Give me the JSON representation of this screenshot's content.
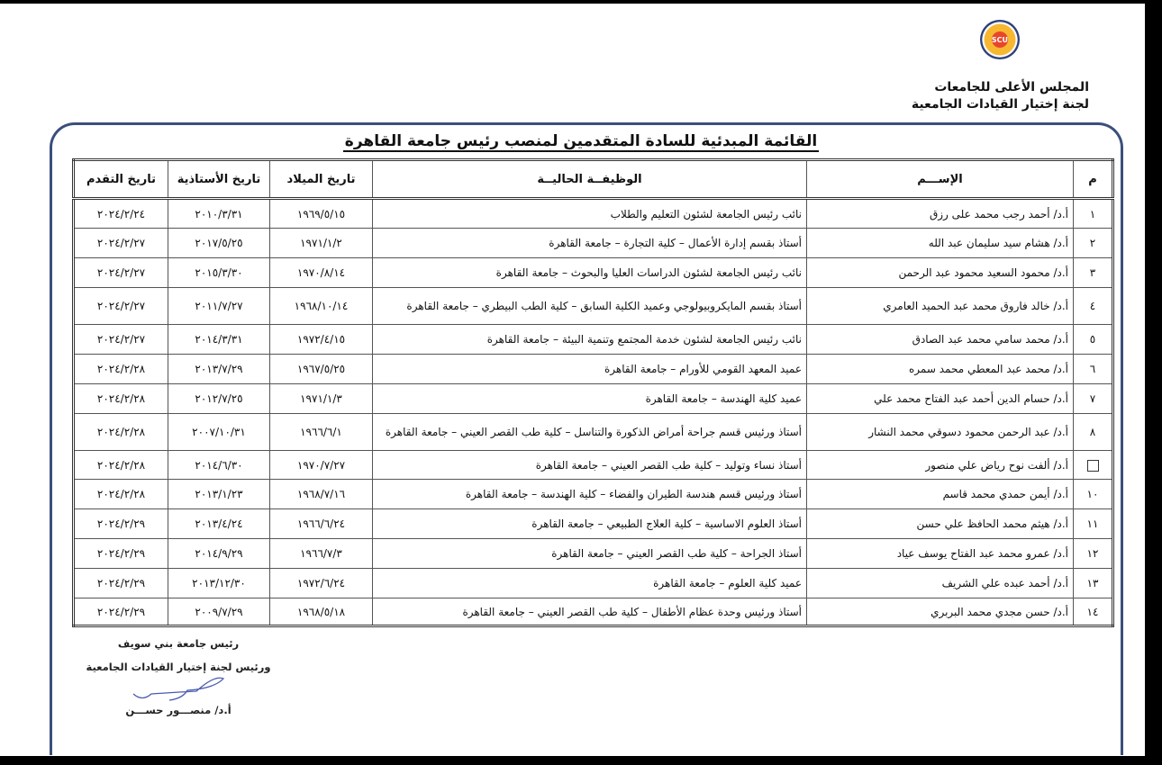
{
  "header": {
    "logo_text": "SCU",
    "org_line1": "المجلس الأعلى للجامعات",
    "org_line2": "لجنة إختيار القيادات الجامعية"
  },
  "title": "القائمة المبدئية  للسادة المتقدمين لمنصب رئيس جامعة القاهرة",
  "table": {
    "columns": [
      "م",
      "الإســـم",
      "الوظيفــة الحاليــة",
      "تاريخ الميلاد",
      "تاريخ الأستاذية",
      "تاريخ التقدم"
    ],
    "rows": [
      {
        "num": "١",
        "name": "أ.د/ أحمد رجب محمد على رزق",
        "job": "نائب رئيس الجامعة لشئون التعليم والطلاب",
        "birth": "١٩٦٩/٥/١٥",
        "prof": "٢٠١٠/٣/٣١",
        "applied": "٢٠٢٤/٢/٢٤"
      },
      {
        "num": "٢",
        "name": "أ.د/ هشام سيد سليمان عبد الله",
        "job": "أستاذ بقسم إدارة الأعمال – كلية التجارة – جامعة القاهرة",
        "birth": "١٩٧١/١/٢",
        "prof": "٢٠١٧/٥/٢٥",
        "applied": "٢٠٢٤/٢/٢٧"
      },
      {
        "num": "٣",
        "name": "أ.د/ محمود السعيد محمود عبد الرحمن",
        "job": "نائب رئيس الجامعة لشئون الدراسات العليا والبحوث – جامعة القاهرة",
        "birth": "١٩٧٠/٨/١٤",
        "prof": "٢٠١٥/٣/٣٠",
        "applied": "٢٠٢٤/٢/٢٧"
      },
      {
        "num": "٤",
        "name": "أ.د/ خالد فاروق محمد عبد الحميد العامري",
        "job": "أستاذ بقسم المايكروبيولوجي وعميد الكلية السابق – كلية الطب البيطري – جامعة القاهرة",
        "birth": "١٩٦٨/١٠/١٤",
        "prof": "٢٠١١/٧/٢٧",
        "applied": "٢٠٢٤/٢/٢٧"
      },
      {
        "num": "٥",
        "name": "أ.د/ محمد سامي محمد عبد الصادق",
        "job": "نائب رئيس الجامعة لشئون خدمة المجتمع وتنمية البيئة – جامعة القاهرة",
        "birth": "١٩٧٢/٤/١٥",
        "prof": "٢٠١٤/٣/٣١",
        "applied": "٢٠٢٤/٢/٢٧"
      },
      {
        "num": "٦",
        "name": "أ.د/ محمد عبد المعطي محمد سمره",
        "job": "عميد المعهد القومي للأورام – جامعة القاهرة",
        "birth": "١٩٦٧/٥/٢٥",
        "prof": "٢٠١٣/٧/٢٩",
        "applied": "٢٠٢٤/٢/٢٨"
      },
      {
        "num": "٧",
        "name": "أ.د/ حسام الدين أحمد عبد الفتاح محمد علي",
        "job": "عميد كلية الهندسة – جامعة القاهرة",
        "birth": "١٩٧١/١/٣",
        "prof": "٢٠١٢/٧/٢٥",
        "applied": "٢٠٢٤/٢/٢٨"
      },
      {
        "num": "٨",
        "name": "أ.د/ عبد الرحمن محمود دسوقي محمد النشار",
        "job": "أستاذ ورئيس قسم جراحة أمراض الذكورة والتناسل – كلية طب القصر العيني – جامعة القاهرة",
        "birth": "١٩٦٦/٦/١",
        "prof": "٢٠٠٧/١٠/٣١",
        "applied": "٢٠٢٤/٢/٢٨"
      },
      {
        "num": "",
        "name": "أ.د/ ألفت نوح رياض علي منصور",
        "job": "أستاذ نساء وتوليد – كلية طب القصر العيني – جامعة القاهرة",
        "birth": "١٩٧٠/٧/٢٧",
        "prof": "٢٠١٤/٦/٣٠",
        "applied": "٢٠٢٤/٢/٢٨"
      },
      {
        "num": "١٠",
        "name": "أ.د/ أيمن حمدي محمد قاسم",
        "job": "أستاذ ورئيس قسم هندسة الطيران والفضاء – كلية الهندسة – جامعة القاهرة",
        "birth": "١٩٦٨/٧/١٦",
        "prof": "٢٠١٣/١/٢٣",
        "applied": "٢٠٢٤/٢/٢٨"
      },
      {
        "num": "١١",
        "name": "أ.د/ هيثم محمد الحافظ علي حسن",
        "job": "أستاذ العلوم الاساسية – كلية العلاج الطبيعي – جامعة القاهرة",
        "birth": "١٩٦٦/٦/٢٤",
        "prof": "٢٠١٣/٤/٢٤",
        "applied": "٢٠٢٤/٢/٢٩"
      },
      {
        "num": "١٢",
        "name": "أ.د/ عمرو محمد عبد الفتاح يوسف عياد",
        "job": "أستاذ الجراحة – كلية طب القصر العيني – جامعة القاهرة",
        "birth": "١٩٦٦/٧/٣",
        "prof": "٢٠١٤/٩/٢٩",
        "applied": "٢٠٢٤/٢/٢٩"
      },
      {
        "num": "١٣",
        "name": "أ.د/ أحمد عبده علي الشريف",
        "job": "عميد كلية العلوم – جامعة القاهرة",
        "birth": "١٩٧٢/٦/٢٤",
        "prof": "٢٠١٣/١٢/٣٠",
        "applied": "٢٠٢٤/٢/٢٩"
      },
      {
        "num": "١٤",
        "name": "أ.د/ حسن مجدي محمد البربري",
        "job": "أستاذ ورئيس وحدة عظام الأطفال – كلية طب القصر العيني – جامعة القاهرة",
        "birth": "١٩٦٨/٥/١٨",
        "prof": "٢٠٠٩/٧/٢٩",
        "applied": "٢٠٢٤/٢/٢٩"
      }
    ]
  },
  "footer": {
    "line1": "رئيس جامعة بني سويف",
    "line2": "ورئيس لجنة إختيار القيادات الجامعية",
    "signatory": "أ.د/ منصـــور حســـن"
  }
}
